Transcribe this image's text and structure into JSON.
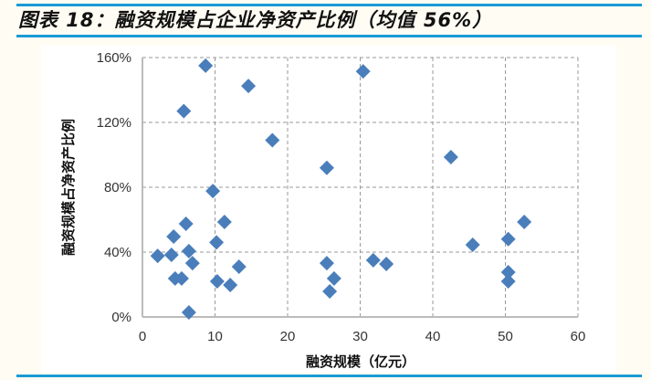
{
  "title": "图表 18：融资规模占企业净资产比例（均值 56%）",
  "chart_data": {
    "type": "scatter",
    "title": "图表 18：融资规模占企业净资产比例（均值 56%）",
    "xlabel": "融资规模（亿元）",
    "ylabel": "融资规模占净资产比例",
    "xlim": [
      0,
      60
    ],
    "ylim": [
      0,
      160
    ],
    "x_ticks": [
      0,
      10,
      20,
      30,
      40,
      50,
      60
    ],
    "x_tick_labels": [
      "0",
      "10",
      "20",
      "30",
      "40",
      "50",
      "60"
    ],
    "y_ticks": [
      0,
      40,
      80,
      120,
      160
    ],
    "y_tick_labels": [
      "0%",
      "40%",
      "80%",
      "120%",
      "160%"
    ],
    "grid": true,
    "marker_color": "#4a7ebb",
    "points": [
      [
        8.7,
        155
      ],
      [
        14.6,
        142.5
      ],
      [
        5.7,
        127
      ],
      [
        17.9,
        109
      ],
      [
        30.4,
        151.5
      ],
      [
        25.4,
        92
      ],
      [
        42.5,
        98.6
      ],
      [
        9.7,
        77.7
      ],
      [
        6.0,
        57.5
      ],
      [
        11.3,
        58.6
      ],
      [
        52.6,
        58.6
      ],
      [
        4.3,
        49.6
      ],
      [
        10.2,
        46
      ],
      [
        50.4,
        48
      ],
      [
        45.5,
        44.5
      ],
      [
        2.1,
        37.7
      ],
      [
        4.0,
        38.3
      ],
      [
        6.4,
        40.6
      ],
      [
        6.9,
        33.2
      ],
      [
        13.3,
        31
      ],
      [
        25.4,
        33.2
      ],
      [
        31.8,
        35
      ],
      [
        33.6,
        32.7
      ],
      [
        4.5,
        23.7
      ],
      [
        5.4,
        23.7
      ],
      [
        10.3,
        22
      ],
      [
        12.1,
        19.7
      ],
      [
        26.4,
        23.7
      ],
      [
        25.8,
        15.8
      ],
      [
        50.4,
        27.6
      ],
      [
        50.4,
        22
      ],
      [
        6.4,
        2.8
      ]
    ]
  }
}
